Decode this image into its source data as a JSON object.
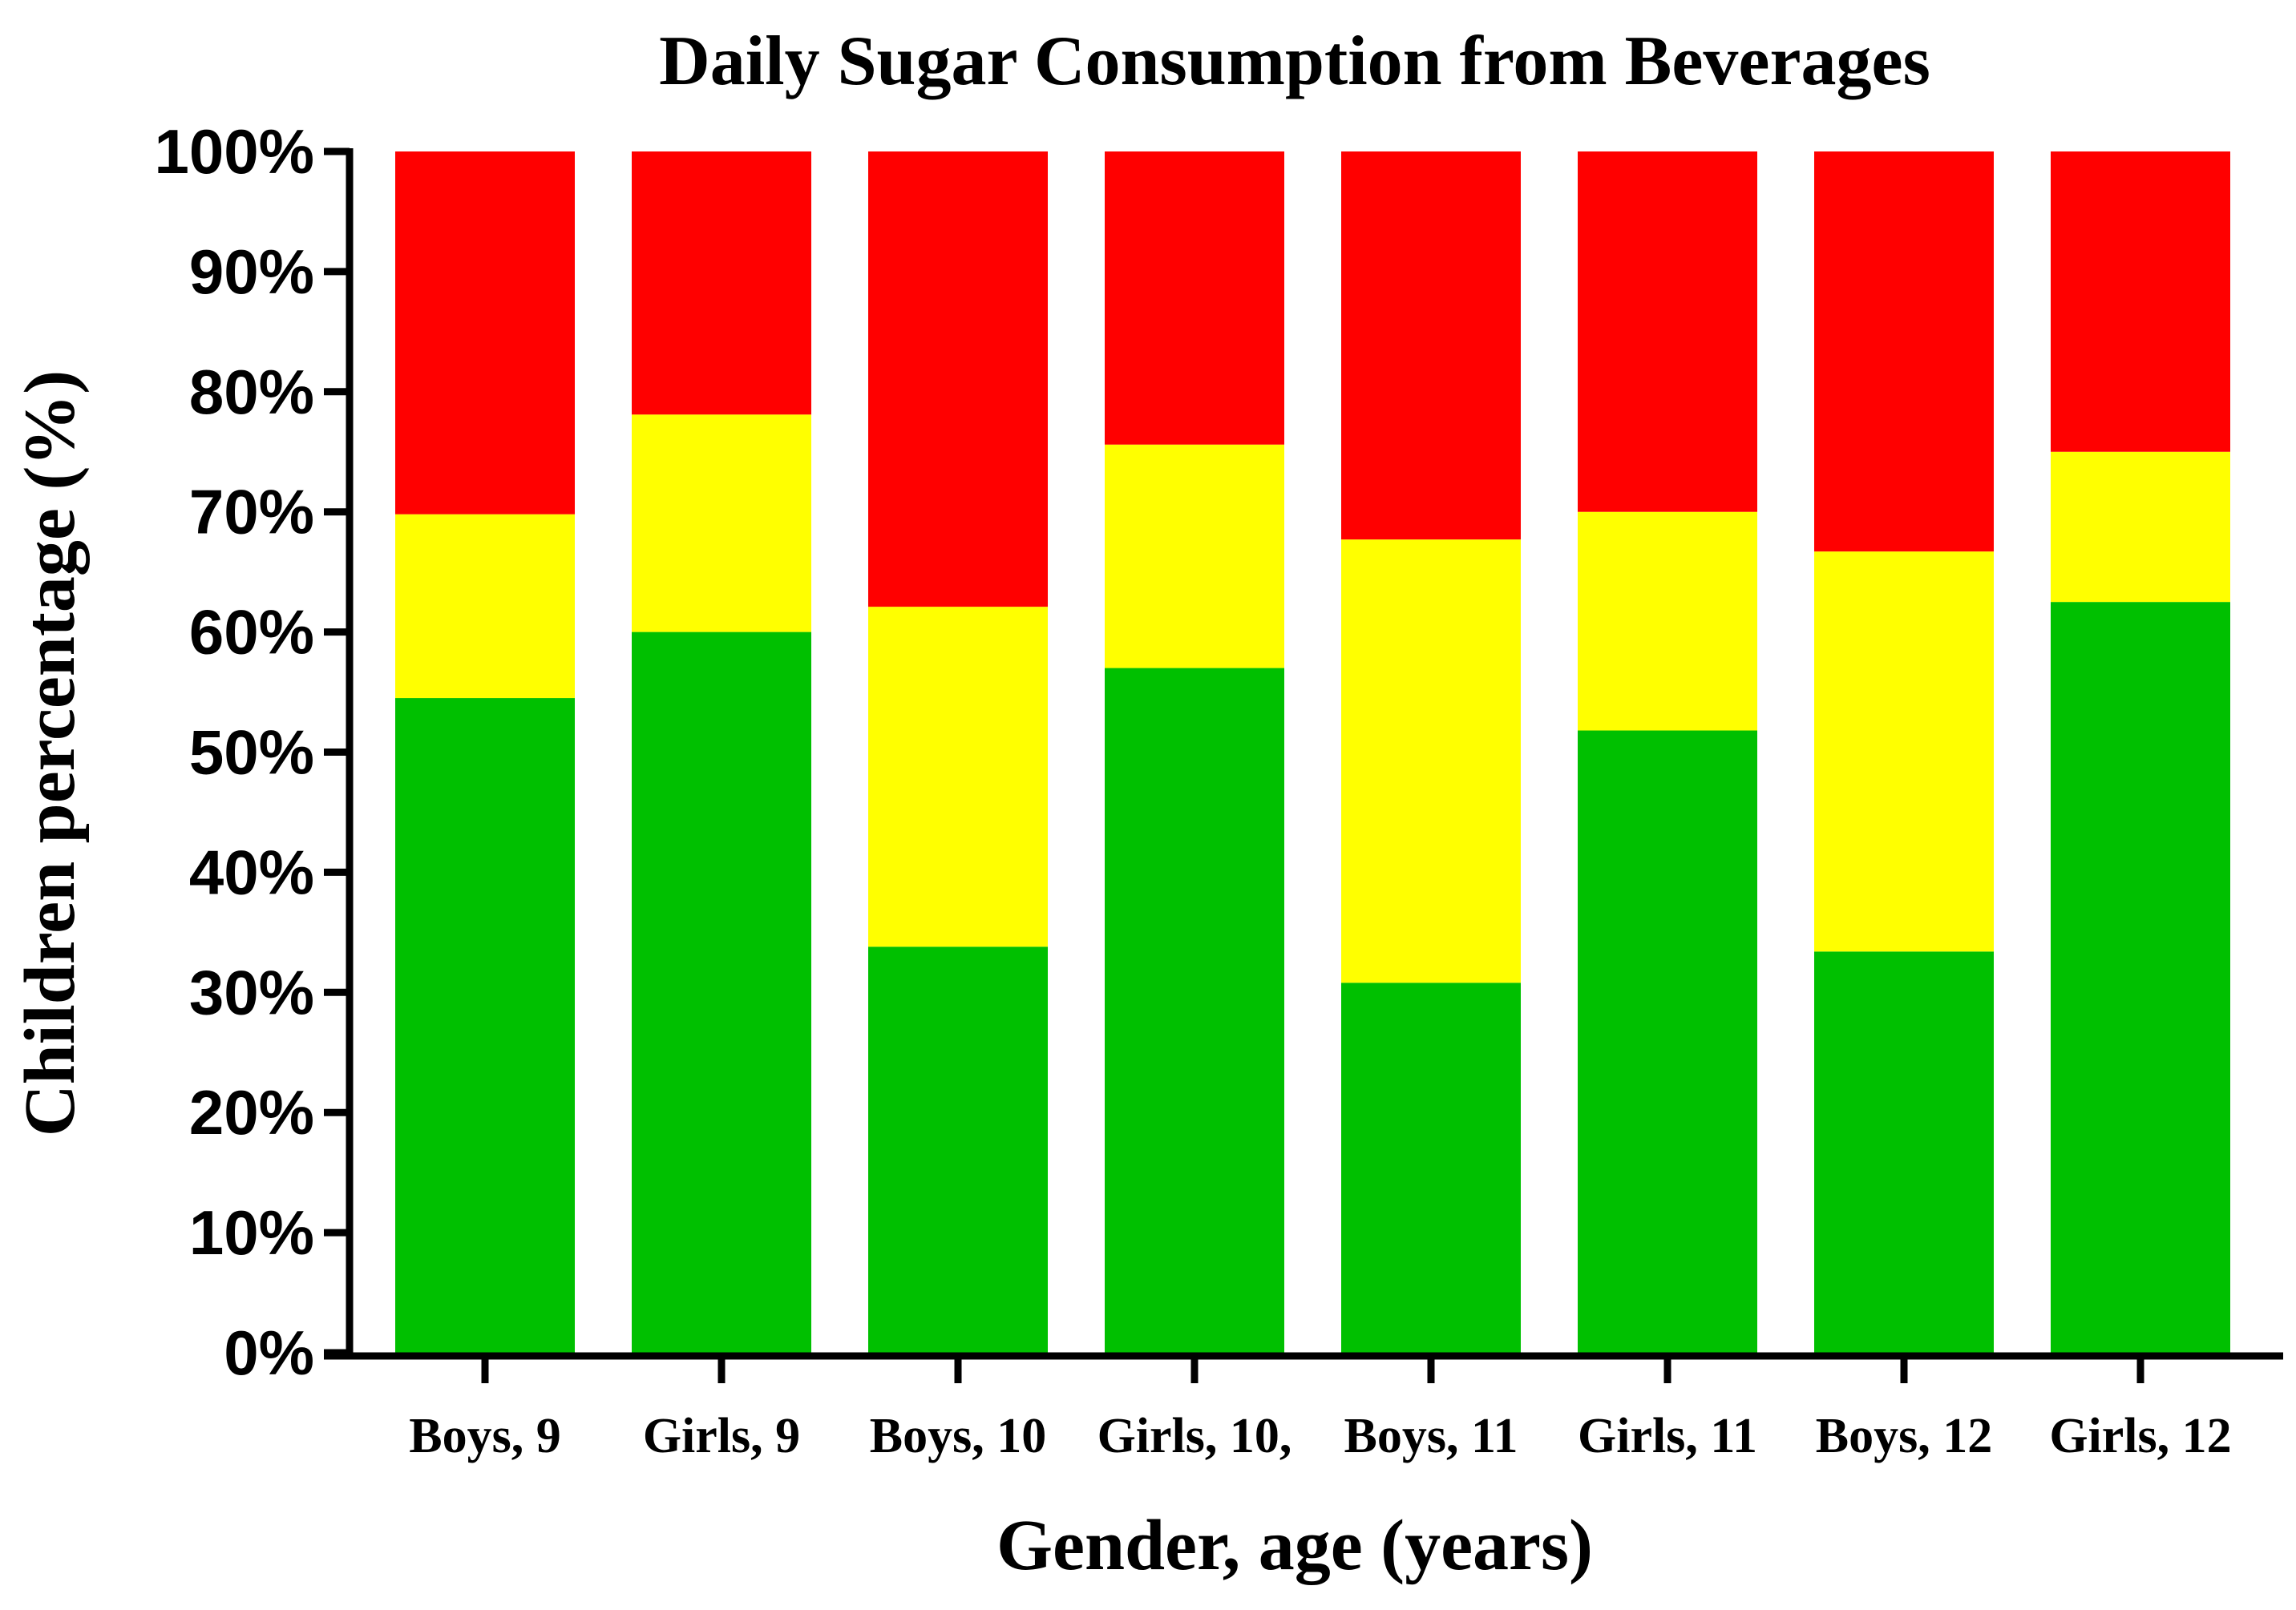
{
  "chart_data": {
    "type": "bar",
    "stacked": true,
    "title": "Daily Sugar Consumption from Beverages",
    "xlabel": "Gender, age (years)",
    "ylabel": "Children percentage (%)",
    "ylim": [
      0,
      100
    ],
    "y_ticks": [
      "0%",
      "10%",
      "20%",
      "30%",
      "40%",
      "50%",
      "60%",
      "70%",
      "80%",
      "90%",
      "100%"
    ],
    "y_tick_values": [
      0,
      10,
      20,
      30,
      40,
      50,
      60,
      70,
      80,
      90,
      100
    ],
    "categories": [
      "Boys, 9",
      "Girls, 9",
      "Boys, 10",
      "Girls, 10,",
      "Boys, 11",
      "Girls, 11",
      "Boys, 12",
      "Girls, 12"
    ],
    "series": [
      {
        "color": "#00c000",
        "values": [
          54.5,
          60.0,
          33.8,
          57.0,
          30.8,
          51.8,
          33.4,
          62.5
        ]
      },
      {
        "color": "#ffff00",
        "values": [
          15.3,
          18.1,
          28.3,
          18.6,
          36.9,
          18.2,
          33.3,
          12.5
        ]
      },
      {
        "color": "#ff0000",
        "values": [
          30.2,
          21.9,
          37.9,
          24.4,
          32.3,
          30.0,
          33.3,
          25.0
        ]
      }
    ],
    "grid": false,
    "legend": "none"
  }
}
